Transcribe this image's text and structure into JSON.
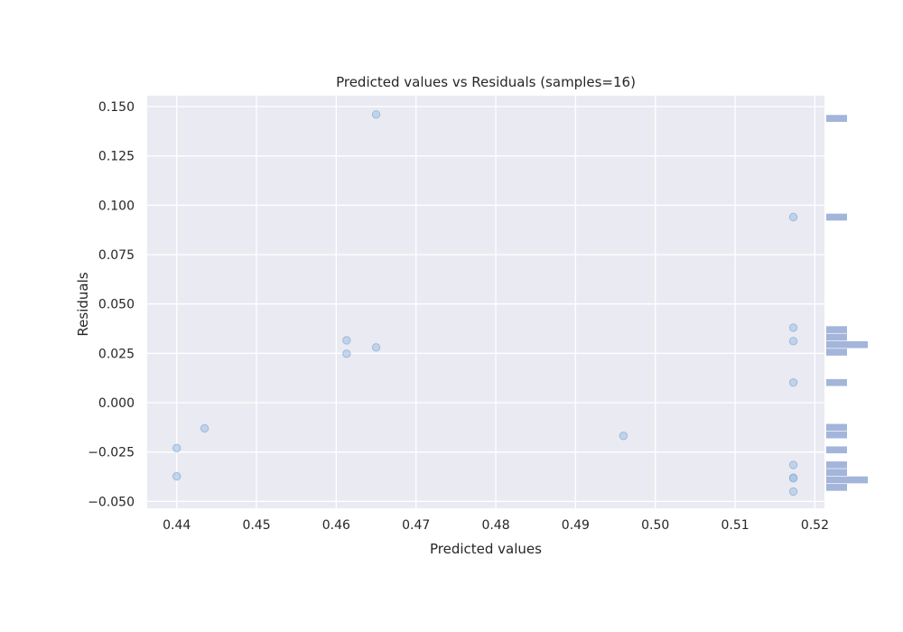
{
  "chart_data": {
    "type": "scatter",
    "title": "Predicted values vs Residuals (samples=16)",
    "xlabel": "Predicted values",
    "ylabel": "Residuals",
    "xlim": [
      0.4363,
      0.5212
    ],
    "ylim": [
      -0.0535,
      0.1555
    ],
    "xticks": [
      0.44,
      0.45,
      0.46,
      0.47,
      0.48,
      0.49,
      0.5,
      0.51,
      0.52
    ],
    "xtick_labels": [
      "0.44",
      "0.45",
      "0.46",
      "0.47",
      "0.48",
      "0.49",
      "0.50",
      "0.51",
      "0.52"
    ],
    "yticks": [
      -0.05,
      -0.025,
      0.0,
      0.025,
      0.05,
      0.075,
      0.1,
      0.125,
      0.15
    ],
    "ytick_labels": [
      "−0.050",
      "−0.025",
      "0.000",
      "0.025",
      "0.050",
      "0.075",
      "0.100",
      "0.125",
      "0.150"
    ],
    "grid": true,
    "point_color": "#a4c3e3",
    "point_edge_color": "#8fb2d8",
    "plot_background": "#eaeaf2",
    "grid_color": "#ffffff",
    "histogram_color": "#a3b5da",
    "points": [
      {
        "x": 0.465,
        "y": 0.146
      },
      {
        "x": 0.5173,
        "y": 0.094
      },
      {
        "x": 0.5173,
        "y": 0.038
      },
      {
        "x": 0.5173,
        "y": 0.0312
      },
      {
        "x": 0.5173,
        "y": 0.0102
      },
      {
        "x": 0.4613,
        "y": 0.0316
      },
      {
        "x": 0.4613,
        "y": 0.0248
      },
      {
        "x": 0.465,
        "y": 0.028
      },
      {
        "x": 0.4435,
        "y": -0.013
      },
      {
        "x": 0.44,
        "y": -0.023
      },
      {
        "x": 0.44,
        "y": -0.0373
      },
      {
        "x": 0.496,
        "y": -0.0168
      },
      {
        "x": 0.5173,
        "y": -0.0315
      },
      {
        "x": 0.5173,
        "y": -0.038
      },
      {
        "x": 0.5173,
        "y": -0.0383
      },
      {
        "x": 0.5173,
        "y": -0.045
      }
    ],
    "marginal_histogram": {
      "orientation": "horizontal",
      "position": "right",
      "bin_width": 0.0035,
      "bins": [
        {
          "y": 0.144,
          "count": 1
        },
        {
          "y": 0.094,
          "count": 1
        },
        {
          "y": 0.037,
          "count": 1
        },
        {
          "y": 0.0332,
          "count": 1
        },
        {
          "y": 0.0294,
          "count": 2
        },
        {
          "y": 0.0256,
          "count": 1
        },
        {
          "y": 0.0102,
          "count": 1
        },
        {
          "y": -0.0125,
          "count": 1
        },
        {
          "y": -0.0163,
          "count": 1
        },
        {
          "y": -0.0239,
          "count": 1
        },
        {
          "y": -0.0315,
          "count": 1
        },
        {
          "y": -0.0353,
          "count": 1
        },
        {
          "y": -0.0391,
          "count": 2
        },
        {
          "y": -0.0429,
          "count": 1
        }
      ]
    }
  }
}
